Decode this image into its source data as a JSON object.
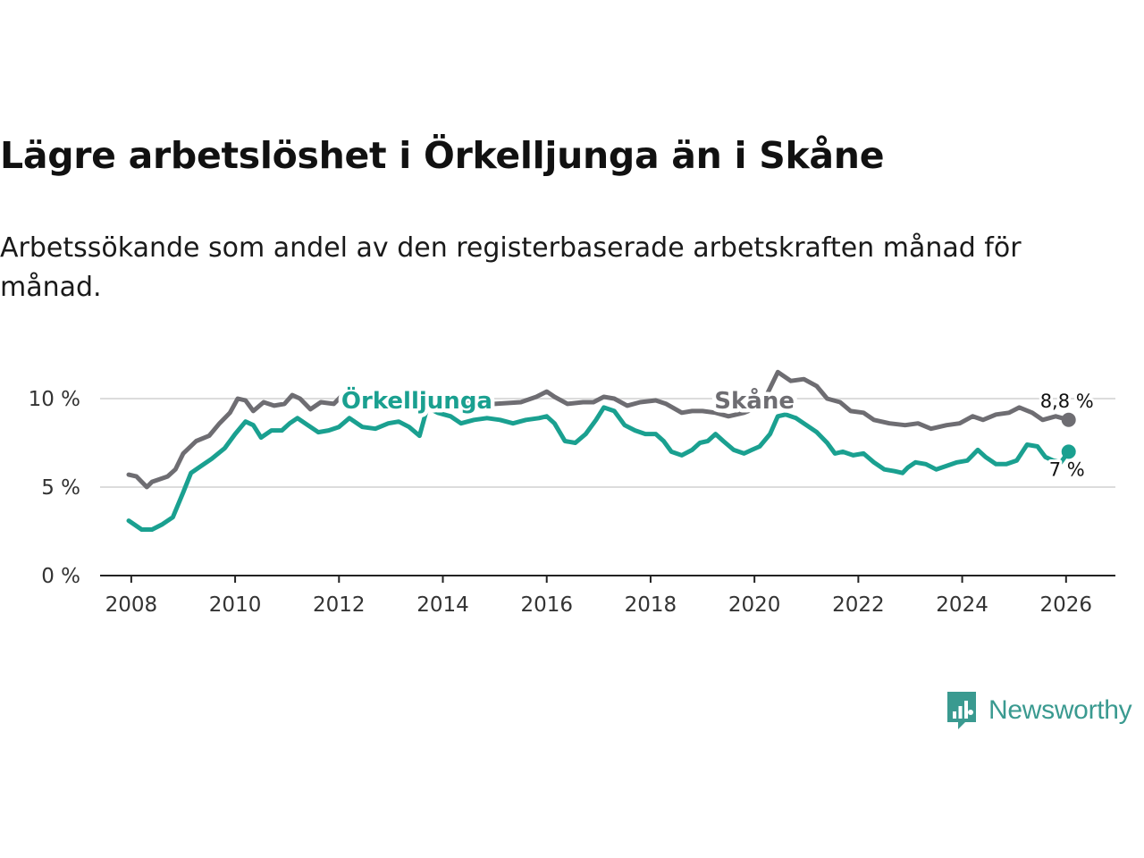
{
  "header": {
    "title": "Lägre arbetslöshet i Örkelljunga än i Skåne",
    "subtitle": "Arbetssökande som andel av den registerbaserade arbetskraften månad för månad."
  },
  "brand": {
    "name": "Newsworthy",
    "icon": "newsworthy-logo-icon",
    "color": "#3a9a90"
  },
  "chart_data": {
    "type": "line",
    "title": "Lägre arbetslöshet i Örkelljunga än i Skåne",
    "xlabel": "",
    "ylabel": "",
    "xlim": [
      2007.4,
      2026.95
    ],
    "ylim": [
      0,
      10
    ],
    "yticks": [
      0,
      5,
      10
    ],
    "ytick_labels": [
      "0 %",
      "5 %",
      "10 %"
    ],
    "xticks": [
      2008,
      2010,
      2012,
      2014,
      2016,
      2018,
      2020,
      2022,
      2024,
      2026
    ],
    "xtick_labels": [
      "2008",
      "2010",
      "2012",
      "2014",
      "2016",
      "2018",
      "2020",
      "2022",
      "2024",
      "2026"
    ],
    "grid": true,
    "series": [
      {
        "name": "Skåne",
        "color": "#6e6d72",
        "end_label": "8,8 %",
        "points": [
          [
            2007.95,
            5.7
          ],
          [
            2008.1,
            5.6
          ],
          [
            2008.3,
            5.0
          ],
          [
            2008.4,
            5.3
          ],
          [
            2008.7,
            5.6
          ],
          [
            2008.85,
            6.0
          ],
          [
            2009.0,
            6.9
          ],
          [
            2009.25,
            7.6
          ],
          [
            2009.5,
            7.9
          ],
          [
            2009.7,
            8.6
          ],
          [
            2009.9,
            9.2
          ],
          [
            2010.05,
            10.0
          ],
          [
            2010.2,
            9.9
          ],
          [
            2010.35,
            9.3
          ],
          [
            2010.55,
            9.8
          ],
          [
            2010.75,
            9.6
          ],
          [
            2010.95,
            9.7
          ],
          [
            2011.1,
            10.2
          ],
          [
            2011.25,
            10.0
          ],
          [
            2011.45,
            9.4
          ],
          [
            2011.65,
            9.8
          ],
          [
            2011.9,
            9.7
          ],
          [
            2012.1,
            10.3
          ],
          [
            2012.3,
            10.2
          ],
          [
            2012.55,
            9.6
          ],
          [
            2012.8,
            10.1
          ],
          [
            2013.1,
            10.1
          ],
          [
            2013.5,
            9.9
          ],
          [
            2014.0,
            10.0
          ],
          [
            2014.5,
            9.9
          ],
          [
            2015.0,
            9.7
          ],
          [
            2015.5,
            9.8
          ],
          [
            2015.8,
            10.1
          ],
          [
            2016.0,
            10.4
          ],
          [
            2016.15,
            10.1
          ],
          [
            2016.4,
            9.7
          ],
          [
            2016.7,
            9.8
          ],
          [
            2016.9,
            9.8
          ],
          [
            2017.1,
            10.1
          ],
          [
            2017.3,
            10.0
          ],
          [
            2017.55,
            9.6
          ],
          [
            2017.8,
            9.8
          ],
          [
            2018.1,
            9.9
          ],
          [
            2018.3,
            9.7
          ],
          [
            2018.6,
            9.2
          ],
          [
            2018.8,
            9.3
          ],
          [
            2019.0,
            9.3
          ],
          [
            2019.25,
            9.2
          ],
          [
            2019.5,
            9.0
          ],
          [
            2019.8,
            9.2
          ],
          [
            2020.05,
            9.5
          ],
          [
            2020.25,
            10.3
          ],
          [
            2020.45,
            11.5
          ],
          [
            2020.7,
            11.0
          ],
          [
            2020.95,
            11.1
          ],
          [
            2021.2,
            10.7
          ],
          [
            2021.4,
            10.0
          ],
          [
            2021.65,
            9.8
          ],
          [
            2021.85,
            9.3
          ],
          [
            2022.1,
            9.2
          ],
          [
            2022.3,
            8.8
          ],
          [
            2022.6,
            8.6
          ],
          [
            2022.9,
            8.5
          ],
          [
            2023.15,
            8.6
          ],
          [
            2023.4,
            8.3
          ],
          [
            2023.7,
            8.5
          ],
          [
            2023.95,
            8.6
          ],
          [
            2024.2,
            9.0
          ],
          [
            2024.4,
            8.8
          ],
          [
            2024.65,
            9.1
          ],
          [
            2024.9,
            9.2
          ],
          [
            2025.1,
            9.5
          ],
          [
            2025.35,
            9.2
          ],
          [
            2025.55,
            8.8
          ],
          [
            2025.8,
            9.0
          ],
          [
            2026.05,
            8.8
          ]
        ]
      },
      {
        "name": "Örkelljunga",
        "color": "#1aa090",
        "end_label": "7 %",
        "points": [
          [
            2007.95,
            3.1
          ],
          [
            2008.2,
            2.6
          ],
          [
            2008.4,
            2.6
          ],
          [
            2008.6,
            2.9
          ],
          [
            2008.8,
            3.3
          ],
          [
            2009.0,
            4.7
          ],
          [
            2009.15,
            5.8
          ],
          [
            2009.35,
            6.2
          ],
          [
            2009.55,
            6.6
          ],
          [
            2009.8,
            7.2
          ],
          [
            2010.0,
            8.0
          ],
          [
            2010.2,
            8.7
          ],
          [
            2010.35,
            8.5
          ],
          [
            2010.5,
            7.8
          ],
          [
            2010.7,
            8.2
          ],
          [
            2010.9,
            8.2
          ],
          [
            2011.05,
            8.6
          ],
          [
            2011.2,
            8.9
          ],
          [
            2011.4,
            8.5
          ],
          [
            2011.6,
            8.1
          ],
          [
            2011.8,
            8.2
          ],
          [
            2012.0,
            8.4
          ],
          [
            2012.2,
            8.9
          ],
          [
            2012.45,
            8.4
          ],
          [
            2012.7,
            8.3
          ],
          [
            2012.95,
            8.6
          ],
          [
            2013.15,
            8.7
          ],
          [
            2013.35,
            8.4
          ],
          [
            2013.55,
            7.9
          ],
          [
            2013.7,
            9.5
          ],
          [
            2013.9,
            9.2
          ],
          [
            2014.15,
            9.0
          ],
          [
            2014.35,
            8.6
          ],
          [
            2014.6,
            8.8
          ],
          [
            2014.85,
            8.9
          ],
          [
            2015.1,
            8.8
          ],
          [
            2015.35,
            8.6
          ],
          [
            2015.6,
            8.8
          ],
          [
            2015.85,
            8.9
          ],
          [
            2016.0,
            9.0
          ],
          [
            2016.15,
            8.6
          ],
          [
            2016.35,
            7.6
          ],
          [
            2016.55,
            7.5
          ],
          [
            2016.75,
            8.0
          ],
          [
            2016.95,
            8.8
          ],
          [
            2017.1,
            9.5
          ],
          [
            2017.3,
            9.3
          ],
          [
            2017.5,
            8.5
          ],
          [
            2017.7,
            8.2
          ],
          [
            2017.9,
            8.0
          ],
          [
            2018.1,
            8.0
          ],
          [
            2018.25,
            7.6
          ],
          [
            2018.4,
            7.0
          ],
          [
            2018.6,
            6.8
          ],
          [
            2018.8,
            7.1
          ],
          [
            2018.95,
            7.5
          ],
          [
            2019.1,
            7.6
          ],
          [
            2019.25,
            8.0
          ],
          [
            2019.4,
            7.6
          ],
          [
            2019.6,
            7.1
          ],
          [
            2019.8,
            6.9
          ],
          [
            2019.95,
            7.1
          ],
          [
            2020.1,
            7.3
          ],
          [
            2020.3,
            8.0
          ],
          [
            2020.45,
            9.0
          ],
          [
            2020.6,
            9.1
          ],
          [
            2020.8,
            8.9
          ],
          [
            2021.0,
            8.5
          ],
          [
            2021.2,
            8.1
          ],
          [
            2021.4,
            7.5
          ],
          [
            2021.55,
            6.9
          ],
          [
            2021.7,
            7.0
          ],
          [
            2021.9,
            6.8
          ],
          [
            2022.1,
            6.9
          ],
          [
            2022.3,
            6.4
          ],
          [
            2022.5,
            6.0
          ],
          [
            2022.7,
            5.9
          ],
          [
            2022.85,
            5.8
          ],
          [
            2022.95,
            6.1
          ],
          [
            2023.1,
            6.4
          ],
          [
            2023.3,
            6.3
          ],
          [
            2023.5,
            6.0
          ],
          [
            2023.7,
            6.2
          ],
          [
            2023.9,
            6.4
          ],
          [
            2024.1,
            6.5
          ],
          [
            2024.3,
            7.1
          ],
          [
            2024.45,
            6.7
          ],
          [
            2024.65,
            6.3
          ],
          [
            2024.85,
            6.3
          ],
          [
            2025.05,
            6.5
          ],
          [
            2025.25,
            7.4
          ],
          [
            2025.45,
            7.3
          ],
          [
            2025.6,
            6.7
          ],
          [
            2025.75,
            6.5
          ],
          [
            2025.9,
            6.4
          ],
          [
            2026.05,
            7.0
          ]
        ]
      }
    ],
    "annotations": [
      {
        "series": "Örkelljunga",
        "text": "Örkelljunga",
        "x": 2013.5,
        "y": 9.9
      },
      {
        "series": "Skåne",
        "text": "Skåne",
        "x": 2020.0,
        "y": 9.9
      }
    ]
  }
}
